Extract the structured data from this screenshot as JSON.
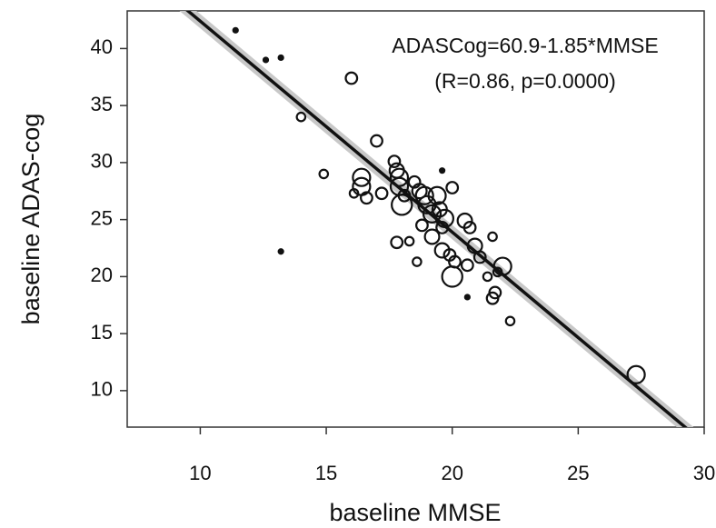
{
  "chart_data": {
    "type": "scatter",
    "xlabel": "baseline MMSE",
    "ylabel": "baseline ADAS-cog",
    "annotations": [
      "ADASCog=60.9-1.85*MMSE",
      "(R=0.86, p=0.0000)"
    ],
    "fit": {
      "intercept": 60.9,
      "slope": -1.85
    },
    "xlim": [
      7.1,
      30
    ],
    "ylim": [
      6.8,
      43.3
    ],
    "xticks": [
      10,
      15,
      20,
      25,
      30
    ],
    "yticks": [
      10,
      15,
      20,
      25,
      30,
      35,
      40
    ],
    "color": "#111111",
    "x": [
      11.4,
      12.6,
      13.2,
      16.0,
      14.0,
      17.0,
      14.9,
      13.2,
      16.4,
      16.4,
      16.1,
      16.6,
      17.2,
      17.7,
      17.8,
      17.9,
      17.9,
      18.1,
      18.0,
      18.5,
      18.7,
      18.9,
      19.0,
      19.2,
      19.4,
      19.5,
      19.7,
      19.6,
      19.6,
      20.0,
      18.8,
      18.3,
      17.8,
      18.6,
      19.2,
      19.6,
      19.9,
      20.1,
      20.0,
      20.5,
      20.7,
      20.9,
      20.6,
      21.1,
      21.6,
      21.4,
      21.7,
      21.8,
      22.0,
      22.3,
      20.6,
      21.6,
      27.3
    ],
    "y": [
      41.6,
      39.0,
      39.2,
      37.4,
      34.0,
      31.9,
      29.0,
      22.2,
      28.7,
      27.9,
      27.3,
      26.9,
      27.3,
      30.1,
      29.3,
      28.7,
      27.9,
      27.1,
      26.3,
      28.3,
      27.5,
      27.1,
      26.3,
      25.5,
      27.1,
      25.9,
      25.1,
      24.3,
      29.3,
      27.8,
      24.5,
      23.1,
      23.0,
      21.3,
      23.5,
      22.3,
      21.9,
      21.3,
      20.0,
      24.9,
      24.3,
      22.7,
      21.0,
      21.7,
      23.5,
      20.0,
      18.6,
      20.4,
      20.9,
      16.1,
      18.2,
      18.1,
      11.4
    ],
    "sizes": [
      1,
      1,
      1,
      3,
      2,
      3,
      2,
      1,
      5,
      5,
      2,
      3,
      3,
      3,
      4,
      5,
      5,
      3,
      6,
      3,
      4,
      5,
      5,
      5,
      5,
      4,
      5,
      3,
      1,
      3,
      3,
      2,
      3,
      2,
      4,
      4,
      3,
      3,
      6,
      4,
      3,
      4,
      3,
      3,
      2,
      2,
      3,
      2,
      5,
      2,
      1,
      3,
      5
    ]
  }
}
